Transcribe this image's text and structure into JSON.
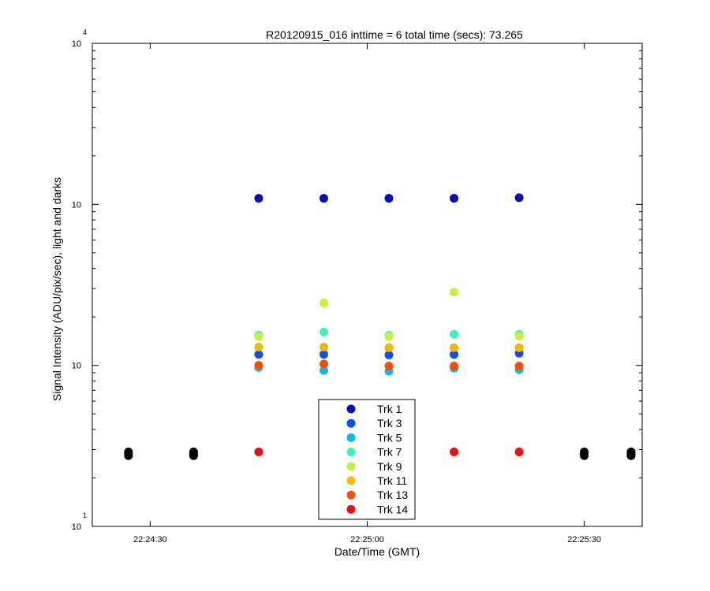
{
  "chart_data": {
    "type": "scatter",
    "title": "R20120915_016 inttime = 6 total time (secs): 73.265",
    "xlabel": "Date/Time (GMT)",
    "ylabel": "Signal Intensity (ADU/pix/sec), light and darks",
    "yscale": "log",
    "xlim": [
      "22:24:22",
      "22:25:38"
    ],
    "ylim": [
      10,
      10000
    ],
    "grid": false,
    "legend_position": "bottom-center",
    "x_ticks": [
      "22:24:30",
      "22:25:00",
      "22:25:30"
    ],
    "y_ticks": [
      {
        "base": "10",
        "exp": "1",
        "value": 10
      },
      {
        "base": "10",
        "exp": "",
        "value": 100
      },
      {
        "base": "10",
        "exp": "",
        "value": 1000
      },
      {
        "base": "10",
        "exp": "4",
        "value": 10000
      }
    ],
    "series": [
      {
        "name": "Trk 1",
        "color": "#0010b4",
        "points": [
          [
            "22:24:45",
            1090
          ],
          [
            "22:24:54",
            1090
          ],
          [
            "22:25:03",
            1090
          ],
          [
            "22:25:12",
            1090
          ],
          [
            "22:25:21",
            1100
          ]
        ]
      },
      {
        "name": "Trk 3",
        "color": "#0a50f0",
        "points": [
          [
            "22:24:45",
            117
          ],
          [
            "22:24:54",
            117
          ],
          [
            "22:25:03",
            116
          ],
          [
            "22:25:12",
            117
          ],
          [
            "22:25:21",
            119
          ]
        ]
      },
      {
        "name": "Trk 5",
        "color": "#10b8f0",
        "points": [
          [
            "22:24:45",
            97
          ],
          [
            "22:24:54",
            93
          ],
          [
            "22:25:03",
            92
          ],
          [
            "22:25:12",
            96
          ],
          [
            "22:25:21",
            94
          ]
        ]
      },
      {
        "name": "Trk 7",
        "color": "#40f0c0",
        "points": [
          [
            "22:24:45",
            154
          ],
          [
            "22:24:54",
            161
          ],
          [
            "22:25:03",
            154
          ],
          [
            "22:25:12",
            156
          ],
          [
            "22:25:21",
            156
          ]
        ]
      },
      {
        "name": "Trk 9",
        "color": "#c8f040",
        "points": [
          [
            "22:24:45",
            151
          ],
          [
            "22:24:54",
            244
          ],
          [
            "22:25:03",
            151
          ],
          [
            "22:25:12",
            285
          ],
          [
            "22:25:21",
            152
          ]
        ]
      },
      {
        "name": "Trk 11",
        "color": "#f8b800",
        "points": [
          [
            "22:24:45",
            130
          ],
          [
            "22:24:54",
            130
          ],
          [
            "22:25:03",
            129
          ],
          [
            "22:25:12",
            129
          ],
          [
            "22:25:21",
            129
          ]
        ]
      },
      {
        "name": "Trk 13",
        "color": "#f85000",
        "points": [
          [
            "22:24:45",
            100
          ],
          [
            "22:24:54",
            102
          ],
          [
            "22:25:03",
            99
          ],
          [
            "22:25:12",
            99
          ],
          [
            "22:25:21",
            99
          ]
        ]
      },
      {
        "name": "Trk 14",
        "color": "#e81010",
        "points": [
          [
            "22:24:45",
            29
          ],
          [
            "22:24:54",
            29
          ],
          [
            "22:25:03",
            29
          ],
          [
            "22:25:12",
            29
          ],
          [
            "22:25:21",
            29
          ]
        ]
      }
    ],
    "darks": {
      "color": "#000000",
      "points": [
        [
          "22:24:27",
          27.5
        ],
        [
          "22:24:27",
          28.2
        ],
        [
          "22:24:27",
          29.0
        ],
        [
          "22:24:36",
          27.5
        ],
        [
          "22:24:36",
          28.2
        ],
        [
          "22:24:36",
          29.0
        ],
        [
          "22:25:30",
          27.5
        ],
        [
          "22:25:30",
          28.2
        ],
        [
          "22:25:30",
          29.0
        ],
        [
          "22:25:39",
          27.5
        ],
        [
          "22:25:39",
          28.2
        ],
        [
          "22:25:39",
          29.0
        ]
      ]
    }
  }
}
